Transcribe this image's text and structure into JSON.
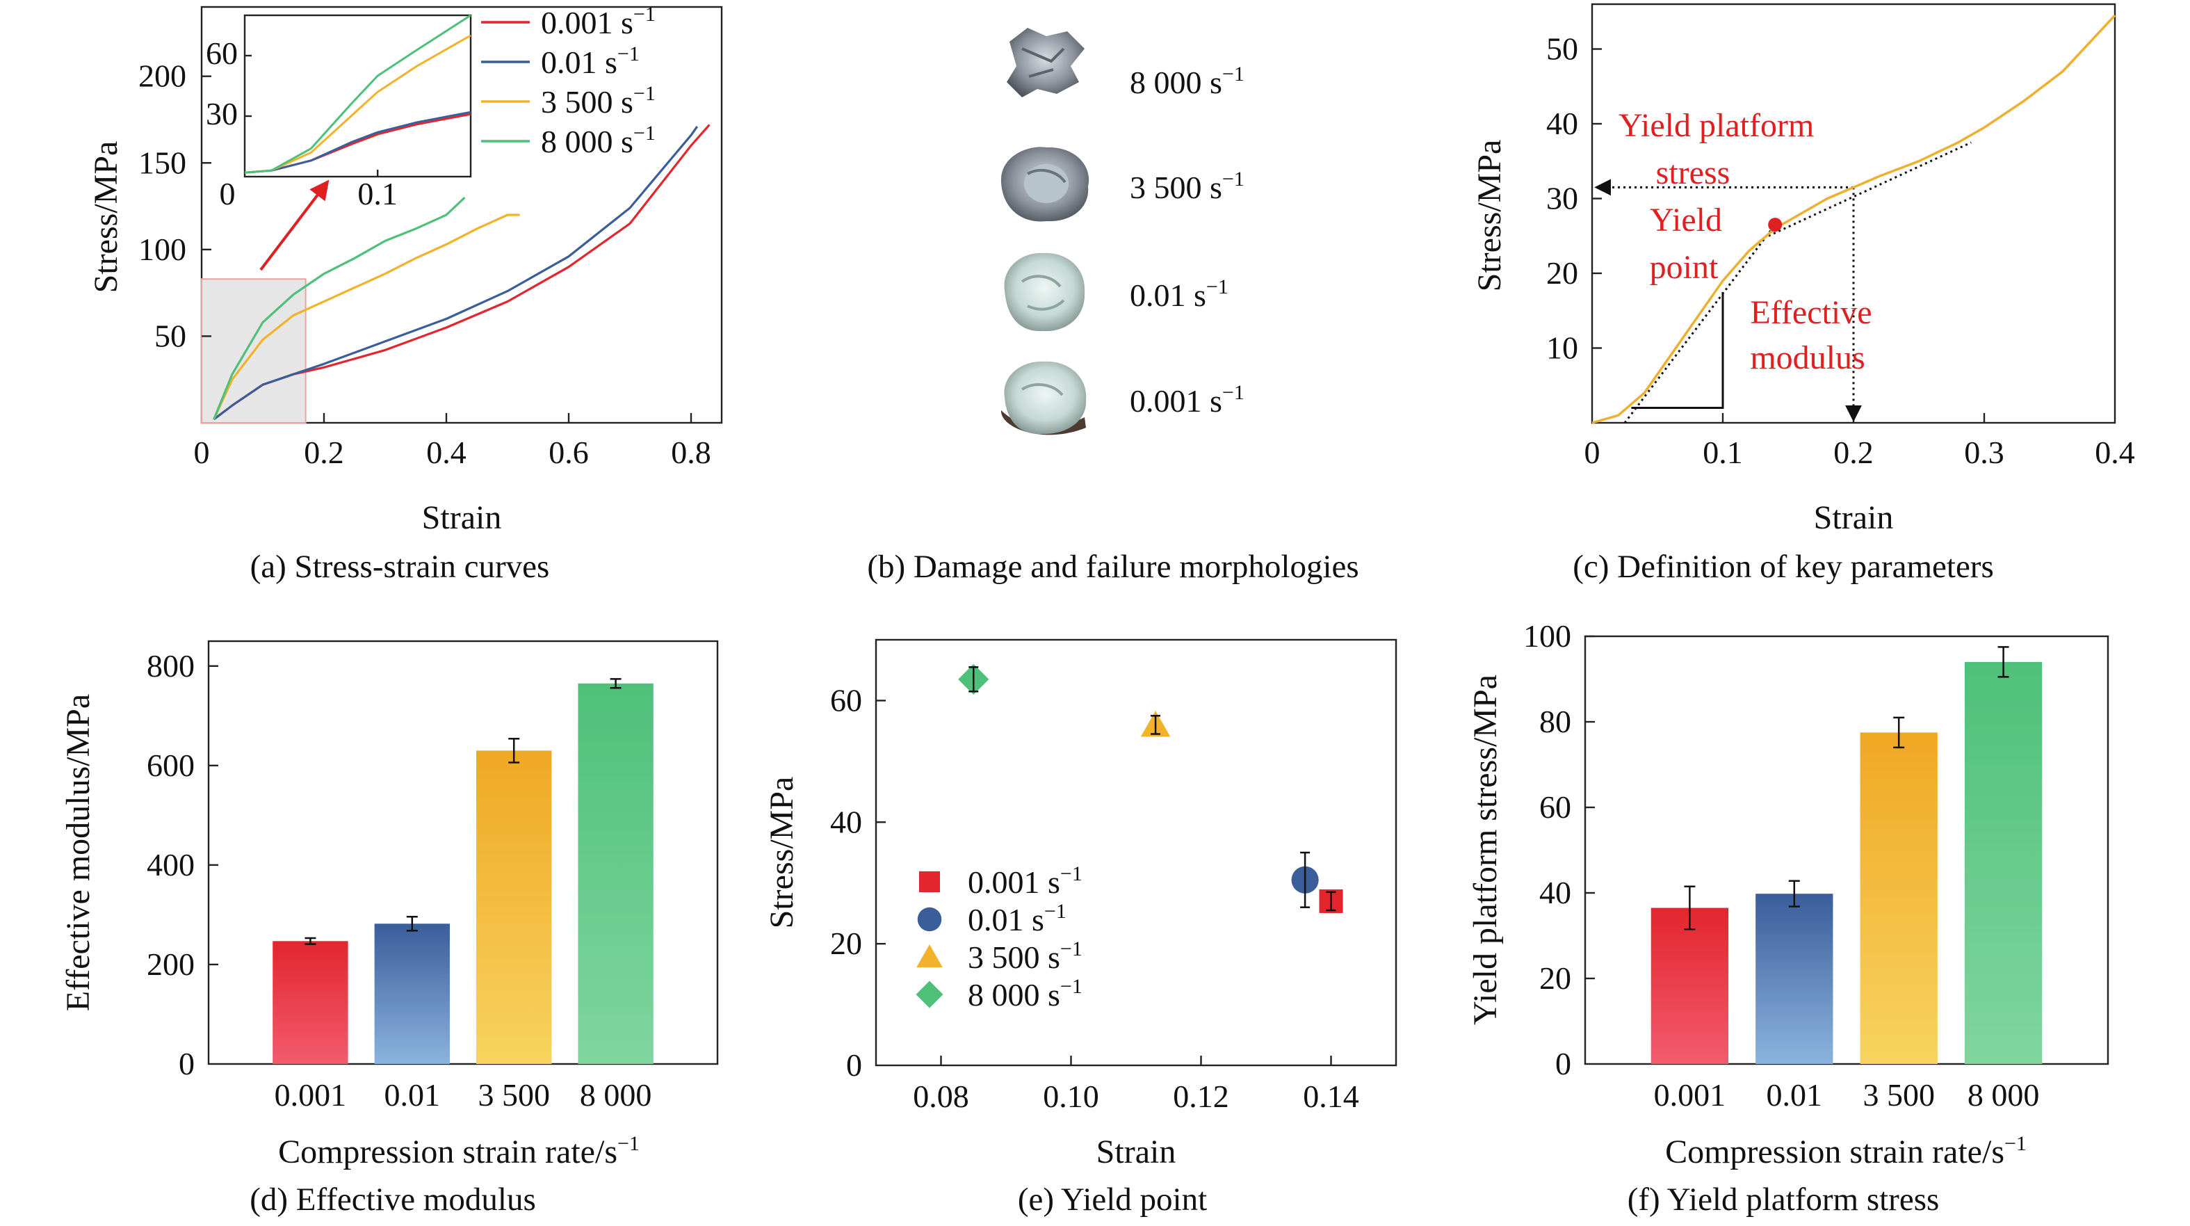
{
  "colors": {
    "r0001": "#e3262e",
    "r001": "#3a5e9a",
    "r3500": "#f2b22a",
    "r8000": "#4fc07a",
    "annotation": "#e02020"
  },
  "legend_labels": [
    "0.001 s",
    "0.01 s",
    "3 500 s",
    "8 000 s"
  ],
  "legend_superscript": "−1",
  "chart_data": [
    {
      "panel": "a",
      "type": "line",
      "caption": "(a) Stress-strain curves",
      "xlabel": "Strain",
      "ylabel": "Stress/MPa",
      "xlim": [
        0,
        0.85
      ],
      "ylim": [
        0,
        240
      ],
      "xticks": [
        "0",
        "0.2",
        "0.4",
        "0.6",
        "0.8"
      ],
      "yticks": [
        "50",
        "100",
        "150",
        "200"
      ],
      "series": [
        {
          "name": "0.001 s-1",
          "x": [
            0.02,
            0.05,
            0.1,
            0.15,
            0.2,
            0.3,
            0.4,
            0.5,
            0.6,
            0.7,
            0.8,
            0.83
          ],
          "y": [
            2,
            10,
            22,
            28,
            32,
            42,
            55,
            70,
            90,
            115,
            160,
            172
          ]
        },
        {
          "name": "0.01 s-1",
          "x": [
            0.02,
            0.05,
            0.1,
            0.15,
            0.2,
            0.3,
            0.4,
            0.5,
            0.6,
            0.7,
            0.8,
            0.81
          ],
          "y": [
            2,
            10,
            22,
            28,
            34,
            47,
            60,
            76,
            96,
            124,
            166,
            171
          ]
        },
        {
          "name": "3 500 s-1",
          "x": [
            0.02,
            0.05,
            0.1,
            0.15,
            0.2,
            0.25,
            0.3,
            0.35,
            0.4,
            0.45,
            0.5,
            0.52
          ],
          "y": [
            2,
            25,
            48,
            62,
            70,
            78,
            86,
            95,
            103,
            112,
            120,
            120
          ]
        },
        {
          "name": "8 000 s-1",
          "x": [
            0.02,
            0.05,
            0.1,
            0.15,
            0.2,
            0.25,
            0.3,
            0.35,
            0.4,
            0.43
          ],
          "y": [
            2,
            28,
            58,
            74,
            86,
            95,
            105,
            112,
            120,
            130
          ]
        }
      ],
      "highlight_box": {
        "x": [
          0,
          0.17
        ],
        "y": [
          0,
          83
        ]
      },
      "inset": {
        "xlim": [
          0,
          0.17
        ],
        "ylim": [
          0,
          80
        ],
        "xticks": [
          "0",
          "0.1"
        ],
        "yticks": [
          "30",
          "60"
        ],
        "series": [
          {
            "name": "0.001 s-1",
            "x": [
              0,
              0.02,
              0.05,
              0.08,
              0.1,
              0.13,
              0.17
            ],
            "y": [
              2,
              3,
              8,
              16,
              21,
              26,
              31
            ]
          },
          {
            "name": "0.01 s-1",
            "x": [
              0,
              0.02,
              0.05,
              0.08,
              0.1,
              0.13,
              0.17
            ],
            "y": [
              2,
              3,
              8,
              17,
              22,
              27,
              32
            ]
          },
          {
            "name": "3 500 s-1",
            "x": [
              0,
              0.02,
              0.05,
              0.08,
              0.1,
              0.13,
              0.17
            ],
            "y": [
              2,
              3,
              12,
              30,
              42,
              55,
              70
            ]
          },
          {
            "name": "8 000 s-1",
            "x": [
              0,
              0.02,
              0.05,
              0.08,
              0.1,
              0.13,
              0.17
            ],
            "y": [
              2,
              3,
              14,
              36,
              50,
              63,
              82
            ]
          }
        ]
      }
    },
    {
      "panel": "b",
      "type": "image",
      "caption": "(b) Damage and failure morphologies",
      "labels": [
        "8 000 s",
        "3 500 s",
        "0.01 s",
        "0.001 s"
      ]
    },
    {
      "panel": "c",
      "type": "line",
      "caption": "(c) Definition of key parameters",
      "xlabel": "Strain",
      "ylabel": "Stress/MPa",
      "xlim": [
        0,
        0.4
      ],
      "ylim": [
        0,
        56
      ],
      "xticks": [
        "0",
        "0.1",
        "0.2",
        "0.3",
        "0.4"
      ],
      "yticks": [
        "10",
        "20",
        "30",
        "40",
        "50"
      ],
      "series": [
        {
          "name": "curve",
          "x": [
            0,
            0.02,
            0.04,
            0.06,
            0.08,
            0.1,
            0.12,
            0.14,
            0.16,
            0.18,
            0.2,
            0.22,
            0.25,
            0.28,
            0.3,
            0.33,
            0.36,
            0.4
          ],
          "y": [
            0,
            1,
            4,
            9,
            14,
            19,
            23,
            26,
            28,
            30,
            31.5,
            33,
            35,
            37.5,
            39.5,
            43,
            47,
            54.5
          ]
        }
      ],
      "yield_point": {
        "x": 0.14,
        "y": 26.5
      },
      "platform_stress": 31.5,
      "platform_strain": 0.2,
      "annotations": [
        "Yield platform",
        "stress",
        "Yield",
        "point",
        "Effective",
        "modulus"
      ]
    },
    {
      "panel": "d",
      "type": "bar",
      "caption": "(d) Effective modulus",
      "xlabel": "Compression strain rate/s",
      "ylabel": "Effective modulus/MPa",
      "ylim": [
        0,
        850
      ],
      "yticks": [
        "0",
        "200",
        "400",
        "600",
        "800"
      ],
      "categories": [
        "0.001",
        "0.01",
        "3 500",
        "8 000"
      ],
      "values": [
        247,
        282,
        630,
        765
      ],
      "errors": [
        6,
        14,
        24,
        9
      ]
    },
    {
      "panel": "e",
      "type": "scatter",
      "caption": "(e) Yield point",
      "xlabel": "Strain",
      "ylabel": "Stress/MPa",
      "xlim": [
        0.07,
        0.15
      ],
      "ylim": [
        0,
        70
      ],
      "xticks": [
        "0.08",
        "0.10",
        "0.12",
        "0.14"
      ],
      "yticks": [
        "0",
        "20",
        "40",
        "60"
      ],
      "series": [
        {
          "name": "0.001 s-1",
          "marker": "square",
          "x": [
            0.14
          ],
          "y": [
            27
          ],
          "err": [
            1.5
          ]
        },
        {
          "name": "0.01 s-1",
          "marker": "circle",
          "x": [
            0.136
          ],
          "y": [
            30.5
          ],
          "err": [
            4.5
          ]
        },
        {
          "name": "3 500 s-1",
          "marker": "triangle",
          "x": [
            0.113
          ],
          "y": [
            56
          ],
          "err": [
            1.5
          ]
        },
        {
          "name": "8 000 s-1",
          "marker": "diamond",
          "x": [
            0.085
          ],
          "y": [
            63.5
          ],
          "err": [
            2
          ]
        }
      ]
    },
    {
      "panel": "f",
      "type": "bar",
      "caption": "(f) Yield platform stress",
      "xlabel": "Compression strain rate/s",
      "ylabel": "Yield platform stress/MPa",
      "ylim": [
        0,
        100
      ],
      "yticks": [
        "0",
        "20",
        "40",
        "60",
        "80",
        "100"
      ],
      "categories": [
        "0.001",
        "0.01",
        "3 500",
        "8 000"
      ],
      "values": [
        36.5,
        39.8,
        77.5,
        94
      ],
      "errors": [
        5,
        3,
        3.5,
        3.5
      ]
    }
  ]
}
